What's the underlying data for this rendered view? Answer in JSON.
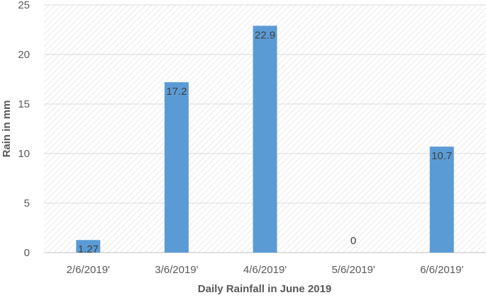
{
  "chart_data": {
    "type": "bar",
    "categories": [
      "2/6/2019'",
      "3/6/2019'",
      "4/6/2019'",
      "5/6/2019'",
      "6/6/2019'"
    ],
    "values": [
      1.27,
      17.2,
      22.9,
      0,
      10.7
    ],
    "data_labels": [
      "1.27",
      "17.2",
      "22.9",
      "0",
      "10.7"
    ],
    "title": "",
    "xlabel": "Daily Rainfall in June 2019",
    "ylabel": "Rain in mm",
    "ylim": [
      0,
      25
    ],
    "yticks": [
      "0",
      "5",
      "10",
      "15",
      "20",
      "25"
    ],
    "grid": true,
    "background_pattern": "diagonal-hatch",
    "colors": {
      "bar": "#5b9bd5",
      "grid": "#d9d9d9",
      "hatch": "#dcdcdc",
      "axis": "#bfbfbf"
    }
  }
}
